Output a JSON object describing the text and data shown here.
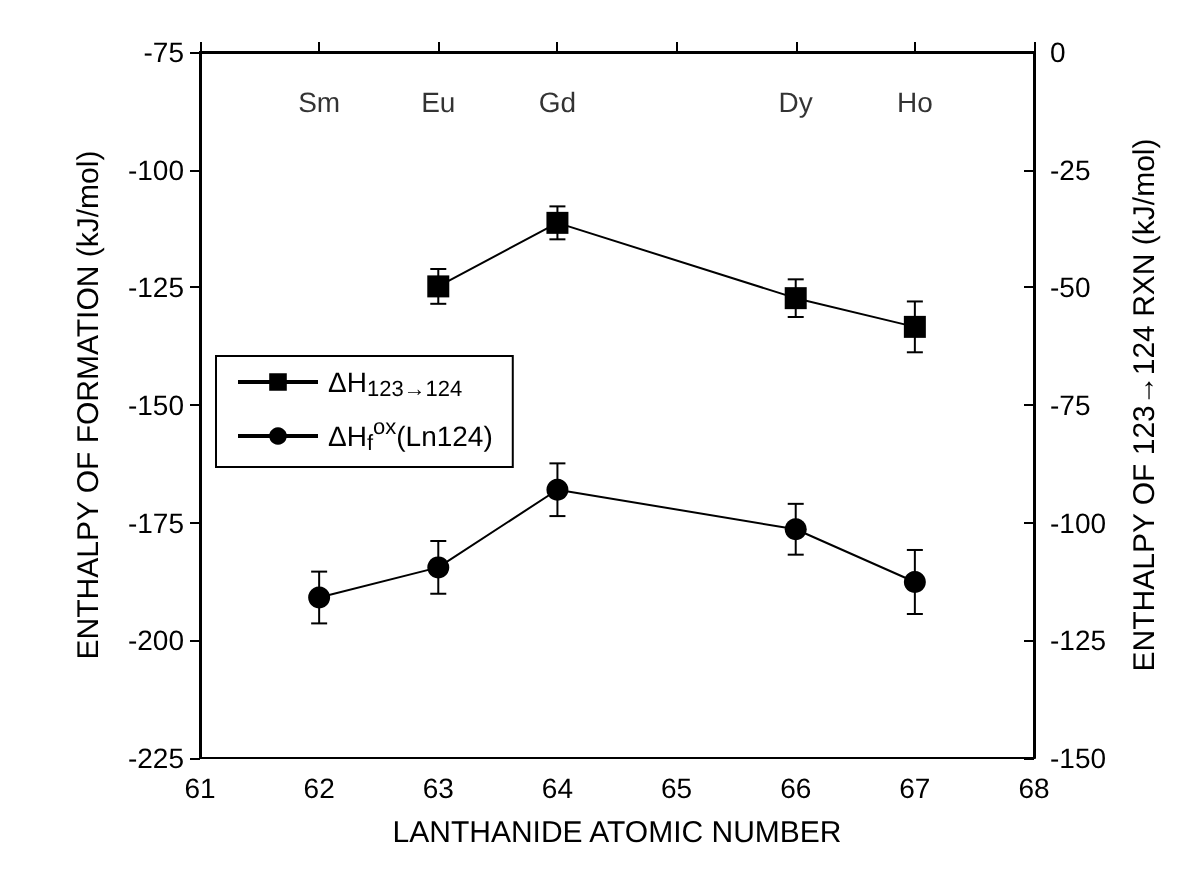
{
  "chart_data": {
    "type": "line",
    "xlabel": "LANTHANIDE ATOMIC NUMBER",
    "ylabel": "ENTHALPY OF FORMATION (kJ/mol)",
    "y2label": "ENTHALPY OF 123→124 RXN (kJ/mol)",
    "xlim": [
      61,
      68
    ],
    "xticks": [
      61,
      62,
      63,
      64,
      65,
      66,
      67,
      68
    ],
    "annotations": [
      "Sm",
      "Eu",
      "Gd",
      "Dy",
      "Ho"
    ],
    "ylim": [
      -225,
      -75
    ],
    "yticks": [
      -225,
      -200,
      -175,
      -150,
      -125,
      -100,
      -75
    ],
    "y2lim": [
      -150,
      0
    ],
    "y2ticks": [
      -150,
      -125,
      -100,
      -75,
      -50,
      -25,
      0
    ],
    "legend": "left",
    "grid": false,
    "series": [
      {
        "name": "ΔH$_{123→124}$",
        "color": "#000000",
        "marker": "square",
        "axis": "y2",
        "x": [
          63,
          64,
          66,
          67
        ],
        "values": [
          -49.8,
          -36.3,
          -52.3,
          -58.4
        ],
        "errors": [
          3.7,
          3.5,
          4,
          5.4
        ]
      },
      {
        "name": "ΔH$_{f}$$^{ox}$(Ln124)",
        "color": "#000000",
        "marker": "circle",
        "x": [
          62,
          63,
          64,
          66,
          67
        ],
        "values": [
          -190.9,
          -184.5,
          -168,
          -176.4,
          -187.6
        ],
        "errors": [
          5.5,
          5.6,
          5.6,
          5.4,
          6.8
        ]
      }
    ]
  }
}
